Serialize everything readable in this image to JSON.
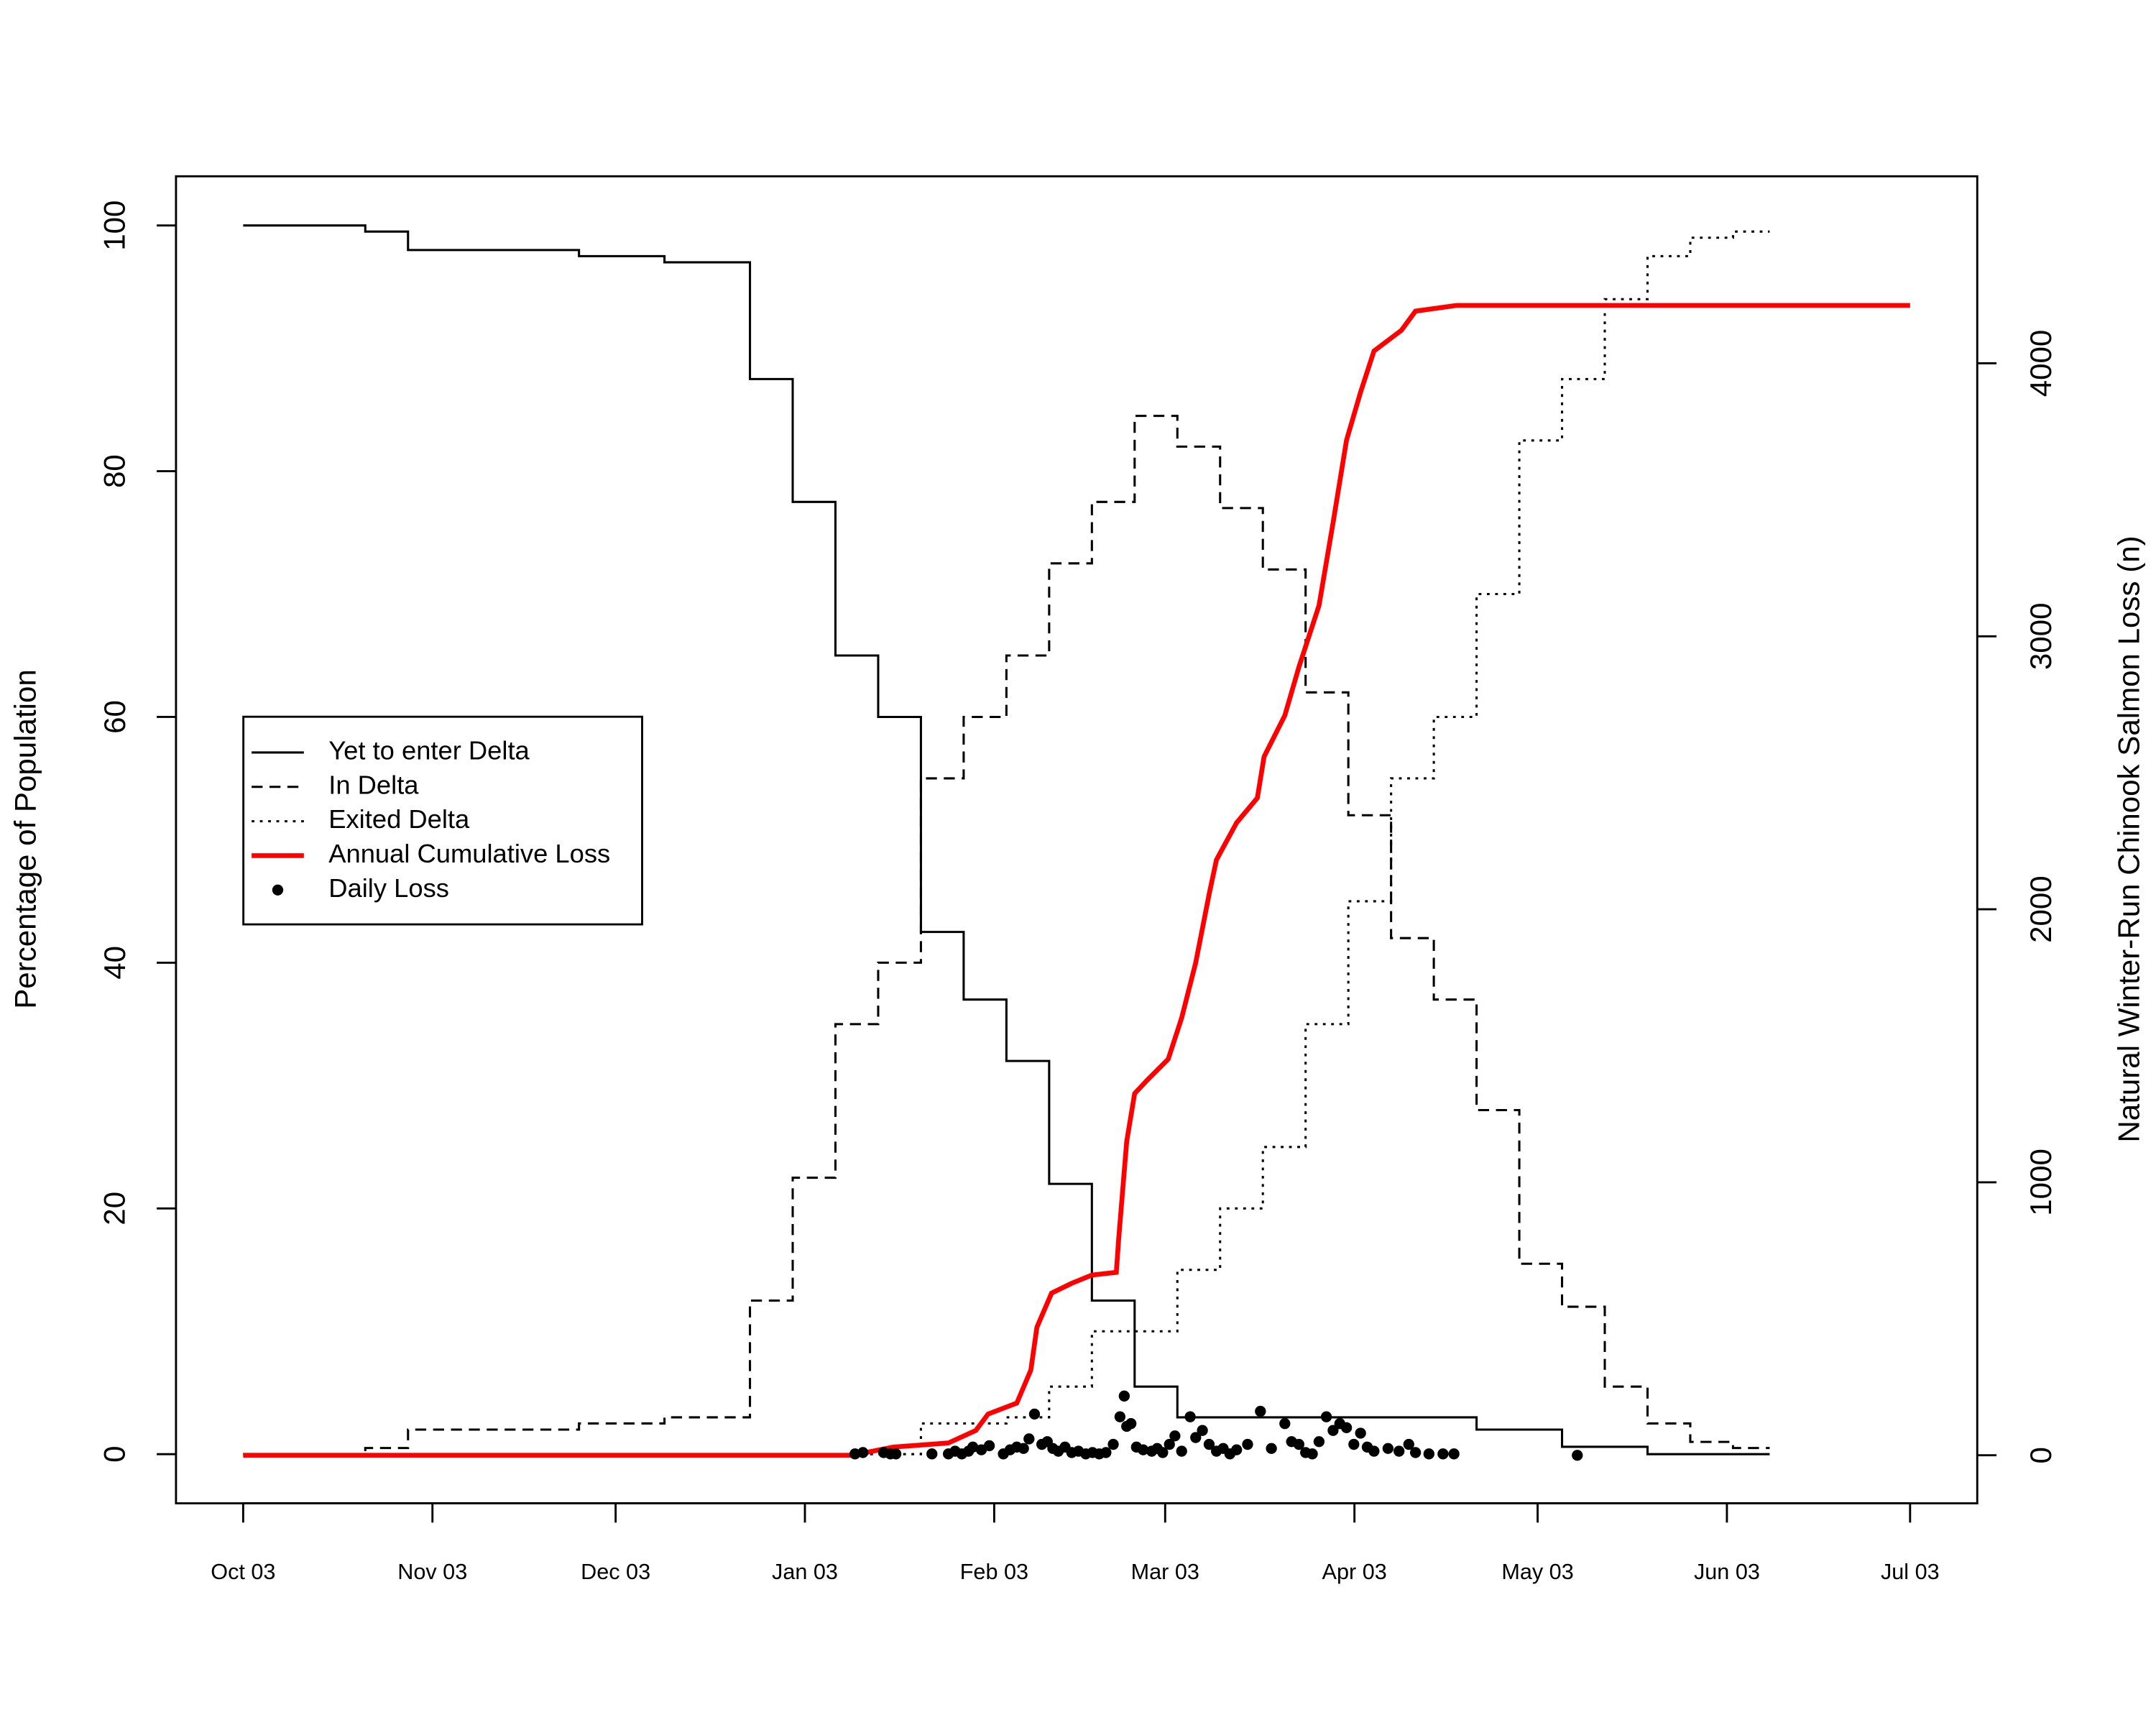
{
  "chart_data": {
    "type": "line",
    "y_label": "Percentage of Population",
    "y2_label": "Natural Winter-Run Chinook Salmon Loss (n)",
    "xlim": [
      -11,
      284
    ],
    "xticks": [
      {
        "value": 0,
        "label": "Oct 03"
      },
      {
        "value": 31,
        "label": "Nov 03"
      },
      {
        "value": 61,
        "label": "Dec 03"
      },
      {
        "value": 92,
        "label": "Jan 03"
      },
      {
        "value": 123,
        "label": "Feb 03"
      },
      {
        "value": 151,
        "label": "Mar 03"
      },
      {
        "value": 182,
        "label": "Apr 03"
      },
      {
        "value": 212,
        "label": "May 03"
      },
      {
        "value": 243,
        "label": "Jun 03"
      },
      {
        "value": 273,
        "label": "Jul 03"
      }
    ],
    "ylim": [
      -4,
      104
    ],
    "yticks": [
      0,
      20,
      40,
      60,
      80,
      100
    ],
    "y2lim": [
      -176,
      4685
    ],
    "y2ticks": [
      0,
      1000,
      2000,
      3000,
      4000
    ],
    "legend": "center-left",
    "series": [
      {
        "name": "Yet to enter Delta",
        "type": "line",
        "color": "#000000",
        "dash": "solid",
        "x": [
          0,
          20,
          20,
          27,
          27,
          55,
          55,
          69,
          69,
          83,
          83,
          90,
          90,
          97,
          97,
          104,
          104,
          111,
          111,
          118,
          118,
          125,
          125,
          132,
          132,
          139,
          139,
          146,
          146,
          153,
          153,
          202,
          202,
          216,
          216,
          230,
          230,
          250
        ],
        "values": [
          100,
          100,
          99.5,
          99.5,
          98,
          98,
          97.5,
          97.5,
          97,
          97,
          87.5,
          87.5,
          77.5,
          77.5,
          65,
          65,
          60,
          60,
          42.5,
          42.5,
          37,
          37,
          32,
          32,
          22,
          22,
          12.5,
          12.5,
          5.5,
          5.5,
          3,
          3,
          2,
          2,
          0.6,
          0.6,
          0,
          0
        ]
      },
      {
        "name": "In Delta",
        "type": "line",
        "color": "#000000",
        "dash": "dashed",
        "x": [
          0,
          20,
          20,
          27,
          27,
          55,
          55,
          69,
          69,
          83,
          83,
          90,
          90,
          97,
          97,
          104,
          104,
          111,
          111,
          118,
          118,
          125,
          125,
          132,
          132,
          139,
          139,
          146,
          146,
          153,
          153,
          160,
          160,
          167,
          167,
          174,
          174,
          181,
          181,
          188,
          188,
          195,
          195,
          202,
          202,
          209,
          209,
          216,
          216,
          223,
          223,
          230,
          230,
          237,
          237,
          244,
          244,
          250
        ],
        "values": [
          0,
          0,
          0.5,
          0.5,
          2,
          2,
          2.5,
          2.5,
          3,
          3,
          12.5,
          12.5,
          22.5,
          22.5,
          35,
          35,
          40,
          40,
          55,
          55,
          60,
          60,
          65,
          65,
          72.5,
          72.5,
          77.5,
          77.5,
          84.5,
          84.5,
          82,
          82,
          77,
          77,
          72,
          72,
          62,
          62,
          52,
          52,
          42,
          42,
          37,
          37,
          28,
          28,
          15.5,
          15.5,
          12,
          12,
          5.5,
          5.5,
          2.5,
          2.5,
          1,
          1,
          0.5,
          0.5
        ]
      },
      {
        "name": "Exited Delta",
        "type": "line",
        "color": "#000000",
        "dash": "dotted",
        "x": [
          0,
          111,
          111,
          125,
          125,
          132,
          132,
          139,
          139,
          153,
          153,
          160,
          160,
          167,
          167,
          174,
          174,
          181,
          181,
          188,
          188,
          195,
          195,
          202,
          202,
          209,
          209,
          216,
          216,
          223,
          223,
          230,
          230,
          237,
          237,
          244,
          244,
          250
        ],
        "values": [
          0,
          0,
          2.5,
          2.5,
          3,
          3,
          5.5,
          5.5,
          10,
          10,
          15,
          15,
          20,
          20,
          25,
          25,
          35,
          35,
          45,
          45,
          55,
          55,
          60,
          60,
          70,
          70,
          82.5,
          82.5,
          87.5,
          87.5,
          94,
          94,
          97.5,
          97.5,
          99,
          99,
          99.5,
          99.5
        ]
      },
      {
        "name": "Annual Cumulative Loss",
        "type": "line",
        "color": "#ff0000",
        "dash": "solid",
        "axis": "y2",
        "x": [
          0,
          99.7,
          106.5,
          115.5,
          120,
          122,
          126.7,
          129,
          130,
          132.4,
          135.7,
          139,
          143,
          143.4,
          144.7,
          146,
          148.1,
          151.5,
          153.7,
          156,
          158.2,
          159.4,
          162.7,
          166.1,
          167.2,
          170.6,
          172.9,
          176.2,
          178.5,
          180.7,
          183,
          185.2,
          189.7,
          192,
          198.7,
          273
        ],
        "values": [
          0,
          0,
          30,
          45,
          91,
          151,
          191,
          312,
          469,
          594,
          630,
          660,
          670,
          796,
          1149,
          1325,
          1375,
          1451,
          1602,
          1804,
          2055,
          2181,
          2317,
          2408,
          2559,
          2710,
          2887,
          3113,
          3416,
          3718,
          3894,
          4045,
          4121,
          4191,
          4212,
          4212
        ]
      },
      {
        "name": "Daily Loss",
        "type": "scatter",
        "color": "#000000",
        "axis": "y2",
        "x": [
          100.2,
          101.5,
          104.9,
          106,
          106.9,
          112.8,
          115.5,
          116.6,
          117.7,
          118.8,
          119.5,
          120.9,
          122.2,
          124.5,
          125.6,
          126.7,
          127.8,
          128.7,
          129.6,
          130.8,
          131.7,
          132.6,
          133.5,
          134.6,
          135.7,
          136.8,
          138,
          139.1,
          140.2,
          141.3,
          142.5,
          143.6,
          144.3,
          144.7,
          145.4,
          146.3,
          147.4,
          148.8,
          149.7,
          150.6,
          151.7,
          152.6,
          153.7,
          155.1,
          156,
          157.1,
          158.2,
          159.4,
          160.5,
          161.6,
          162.7,
          164.5,
          166.6,
          168.4,
          170.6,
          171.7,
          172.9,
          174,
          175.1,
          176.2,
          177.4,
          178.5,
          179.6,
          180.7,
          181.9,
          183,
          184.1,
          185.2,
          187.5,
          189.3,
          190.9,
          192,
          194.2,
          196.5,
          198.3,
          218.5
        ],
        "values": [
          5,
          10,
          10,
          5,
          5,
          5,
          5,
          15,
          5,
          15,
          30,
          20,
          35,
          5,
          20,
          30,
          25,
          60,
          151,
          40,
          50,
          25,
          15,
          30,
          10,
          15,
          5,
          10,
          5,
          10,
          40,
          141,
          217,
          106,
          116,
          30,
          20,
          15,
          25,
          10,
          40,
          71,
          15,
          141,
          65,
          91,
          40,
          15,
          25,
          5,
          20,
          40,
          161,
          25,
          116,
          50,
          40,
          10,
          5,
          50,
          141,
          91,
          116,
          101,
          40,
          81,
          30,
          15,
          25,
          15,
          40,
          10,
          5,
          5,
          5,
          0
        ]
      }
    ]
  }
}
